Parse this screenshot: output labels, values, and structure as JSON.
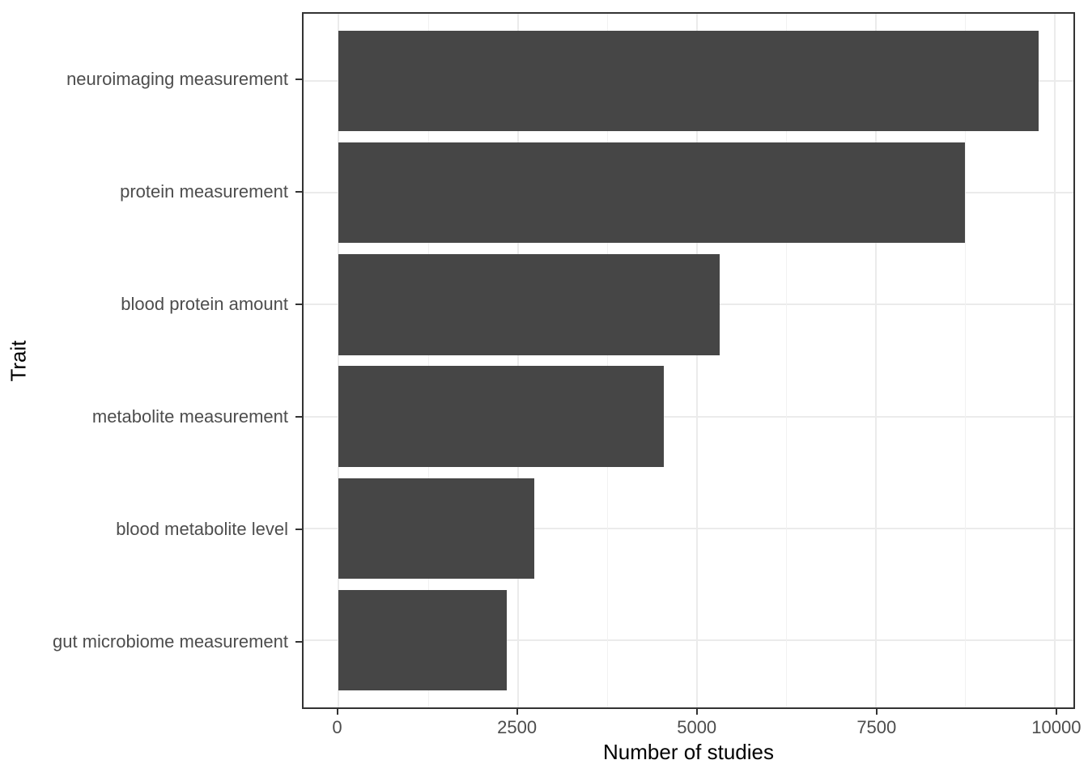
{
  "chart_data": {
    "type": "bar",
    "orientation": "horizontal",
    "xlabel": "Number of studies",
    "ylabel": "Trait",
    "categories": [
      "neuroimaging measurement",
      "protein measurement",
      "blood protein amount",
      "metabolite measurement",
      "blood metabolite level",
      "gut microbiome measurement"
    ],
    "values": [
      9770,
      8740,
      5320,
      4540,
      2730,
      2350
    ],
    "x_ticks": [
      0,
      2500,
      5000,
      7500,
      10000
    ],
    "x_tick_labels": [
      "0",
      "2500",
      "5000",
      "7500",
      "10000"
    ],
    "x_minor_ticks": [
      1250,
      3750,
      6250,
      8750
    ],
    "xlim": [
      -490,
      10260
    ],
    "grid": true,
    "legend": false,
    "bar_color": "#464646",
    "panel_border_color": "#333333",
    "major_grid_color": "#EBEBEB",
    "minor_grid_color": "#F1F1F1",
    "tick_label_color": "#4D4D4D",
    "axis_title_color": "#000000",
    "background_color": "#FFFFFF"
  }
}
